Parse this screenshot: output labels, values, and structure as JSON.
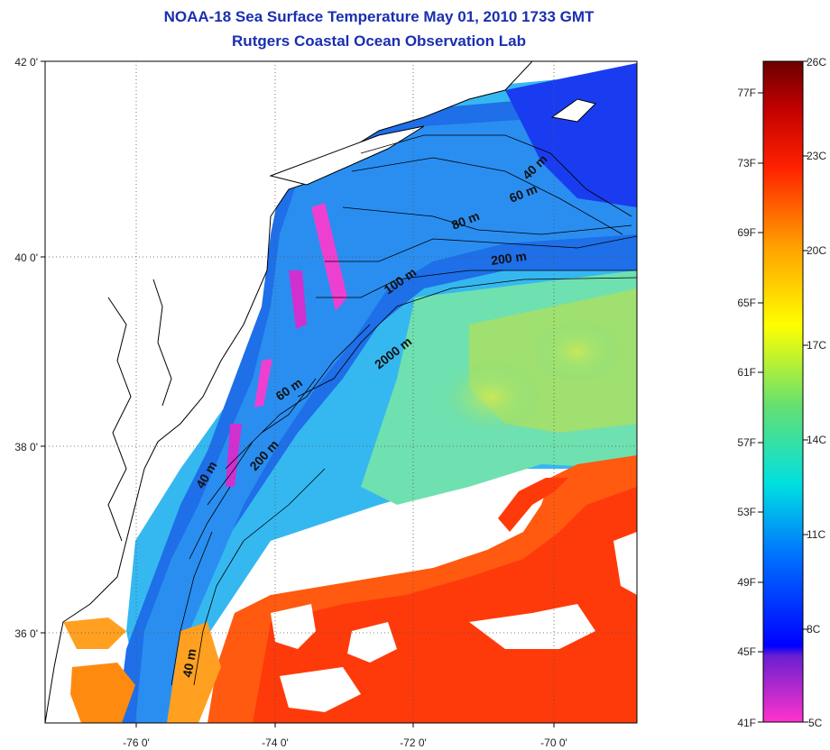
{
  "title": {
    "line1": "NOAA-18 Sea Surface Temperature May 01, 2010 1733 GMT",
    "line2": "Rutgers Coastal Ocean Observation Lab"
  },
  "map": {
    "lat_ticks": [
      "42 0'",
      "40 0'",
      "38 0'",
      "36 0'"
    ],
    "lon_ticks": [
      "-76 0'",
      "-74 0'",
      "-72 0'",
      "-70 0'"
    ],
    "contour_labels": [
      "40 m",
      "60 m",
      "80 m",
      "200 m",
      "100 m",
      "2000 m",
      "60 m",
      "200 m",
      "40 m",
      "40 m"
    ],
    "land_color": "#ffffff",
    "coast_color": "#000000"
  },
  "colorbar": {
    "fahrenheit": [
      "77F",
      "73F",
      "69F",
      "65F",
      "61F",
      "57F",
      "53F",
      "49F",
      "45F",
      "41F"
    ],
    "celsius": [
      "26C",
      "23C",
      "20C",
      "17C",
      "14C",
      "11C",
      "8C",
      "5C"
    ],
    "colors": [
      "#ff33cc",
      "#6a1fd0",
      "#0000ff",
      "#00a0ff",
      "#00e0e0",
      "#66e070",
      "#ffff00",
      "#ffa000",
      "#ff2000",
      "#b00000",
      "#6a0000"
    ]
  }
}
